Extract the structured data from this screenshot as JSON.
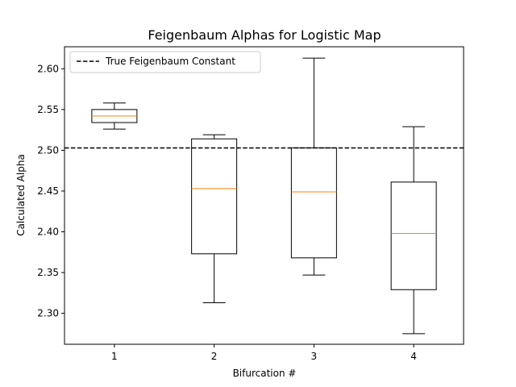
{
  "chart_data": {
    "type": "box",
    "title": "Feigenbaum Alphas for Logistic Map",
    "xlabel": "Bifurcation #",
    "ylabel": "Calculated Alpha",
    "ylim": [
      2.262,
      2.627
    ],
    "yticks": [
      2.3,
      2.35,
      2.4,
      2.45,
      2.5,
      2.55,
      2.6
    ],
    "ytick_labels": [
      "2.30",
      "2.35",
      "2.40",
      "2.45",
      "2.50",
      "2.55",
      "2.60"
    ],
    "categories": [
      "1",
      "2",
      "3",
      "4"
    ],
    "boxes": [
      {
        "whisker_low": 2.526,
        "q1": 2.534,
        "median": 2.542,
        "q3": 2.55,
        "whisker_high": 2.558
      },
      {
        "whisker_low": 2.313,
        "q1": 2.373,
        "median": 2.453,
        "q3": 2.514,
        "whisker_high": 2.519
      },
      {
        "whisker_low": 2.347,
        "q1": 2.368,
        "median": 2.449,
        "q3": 2.503,
        "whisker_high": 2.613
      },
      {
        "whisker_low": 2.275,
        "q1": 2.329,
        "median": 2.398,
        "q3": 2.461,
        "whisker_high": 2.529
      }
    ],
    "reference_line": {
      "label": "True Feigenbaum Constant",
      "value": 2.5029,
      "style": "dashed",
      "color": "#000000"
    },
    "legend": {
      "location": "top-left",
      "entries": [
        "True Feigenbaum Constant"
      ]
    },
    "colors": {
      "box": "#000000",
      "median": "#ff7f0e",
      "axes": "#000000"
    },
    "grid": false
  }
}
